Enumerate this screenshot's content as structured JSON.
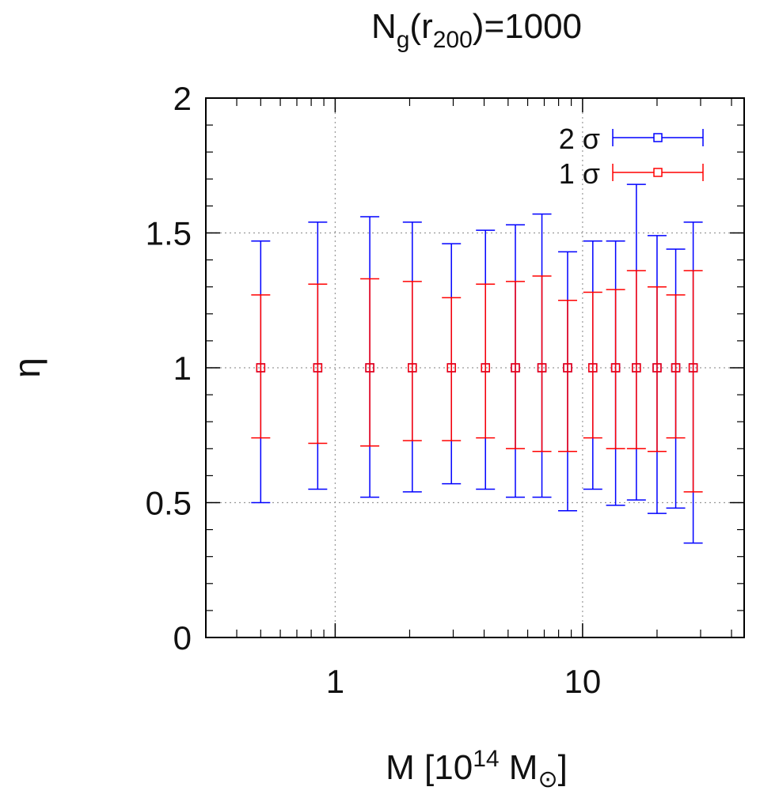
{
  "chart_data": {
    "type": "errorbar",
    "title": {
      "prefix": "N",
      "sub1": "g",
      "mid": "(r",
      "sub2": "200",
      "suffix": ")=1000"
    },
    "xlabel": {
      "prefix": "M [10",
      "sup": "14",
      "mid": " M",
      "sub": "⊙",
      "suffix": "]"
    },
    "ylabel": "η",
    "x_scale": "log",
    "xlim": [
      0.3,
      45
    ],
    "ylim": [
      0,
      2
    ],
    "x_ticks": [
      {
        "value": 1,
        "label": "1"
      },
      {
        "value": 10,
        "label": "10"
      }
    ],
    "y_ticks": [
      {
        "value": 0,
        "label": "0"
      },
      {
        "value": 0.5,
        "label": "0.5"
      },
      {
        "value": 1,
        "label": "1"
      },
      {
        "value": 1.5,
        "label": "1.5"
      },
      {
        "value": 2,
        "label": "2"
      }
    ],
    "grid": true,
    "legend": {
      "position": "top-right",
      "entries": [
        {
          "name": "2 σ",
          "color": "#0000ff"
        },
        {
          "name": "1 σ",
          "color": "#ff0000"
        }
      ]
    },
    "series": [
      {
        "name": "2 σ",
        "color": "#0000ff",
        "points": [
          {
            "x": 0.5,
            "y": 1,
            "low": 0.5,
            "high": 1.47
          },
          {
            "x": 0.85,
            "y": 1,
            "low": 0.55,
            "high": 1.54
          },
          {
            "x": 1.38,
            "y": 1,
            "low": 0.52,
            "high": 1.56
          },
          {
            "x": 2.05,
            "y": 1,
            "low": 0.54,
            "high": 1.54
          },
          {
            "x": 2.95,
            "y": 1,
            "low": 0.57,
            "high": 1.46
          },
          {
            "x": 4.05,
            "y": 1,
            "low": 0.55,
            "high": 1.51
          },
          {
            "x": 5.35,
            "y": 1,
            "low": 0.52,
            "high": 1.53
          },
          {
            "x": 6.85,
            "y": 1,
            "low": 0.52,
            "high": 1.57
          },
          {
            "x": 8.7,
            "y": 1,
            "low": 0.47,
            "high": 1.43
          },
          {
            "x": 11.0,
            "y": 1,
            "low": 0.55,
            "high": 1.47
          },
          {
            "x": 13.6,
            "y": 1,
            "low": 0.49,
            "high": 1.47
          },
          {
            "x": 16.5,
            "y": 1,
            "low": 0.51,
            "high": 1.68
          },
          {
            "x": 20.0,
            "y": 1,
            "low": 0.46,
            "high": 1.49
          },
          {
            "x": 23.8,
            "y": 1,
            "low": 0.48,
            "high": 1.44
          },
          {
            "x": 28.0,
            "y": 1,
            "low": 0.35,
            "high": 1.54
          }
        ]
      },
      {
        "name": "1 σ",
        "color": "#ff0000",
        "points": [
          {
            "x": 0.5,
            "y": 1,
            "low": 0.74,
            "high": 1.27
          },
          {
            "x": 0.85,
            "y": 1,
            "low": 0.72,
            "high": 1.31
          },
          {
            "x": 1.38,
            "y": 1,
            "low": 0.71,
            "high": 1.33
          },
          {
            "x": 2.05,
            "y": 1,
            "low": 0.73,
            "high": 1.32
          },
          {
            "x": 2.95,
            "y": 1,
            "low": 0.73,
            "high": 1.26
          },
          {
            "x": 4.05,
            "y": 1,
            "low": 0.74,
            "high": 1.31
          },
          {
            "x": 5.35,
            "y": 1,
            "low": 0.7,
            "high": 1.32
          },
          {
            "x": 6.85,
            "y": 1,
            "low": 0.69,
            "high": 1.34
          },
          {
            "x": 8.7,
            "y": 1,
            "low": 0.69,
            "high": 1.25
          },
          {
            "x": 11.0,
            "y": 1,
            "low": 0.74,
            "high": 1.28
          },
          {
            "x": 13.6,
            "y": 1,
            "low": 0.7,
            "high": 1.29
          },
          {
            "x": 16.5,
            "y": 1,
            "low": 0.7,
            "high": 1.36
          },
          {
            "x": 20.0,
            "y": 1,
            "low": 0.69,
            "high": 1.3
          },
          {
            "x": 23.8,
            "y": 1,
            "low": 0.74,
            "high": 1.27
          },
          {
            "x": 28.0,
            "y": 1,
            "low": 0.54,
            "high": 1.36
          }
        ]
      }
    ]
  }
}
